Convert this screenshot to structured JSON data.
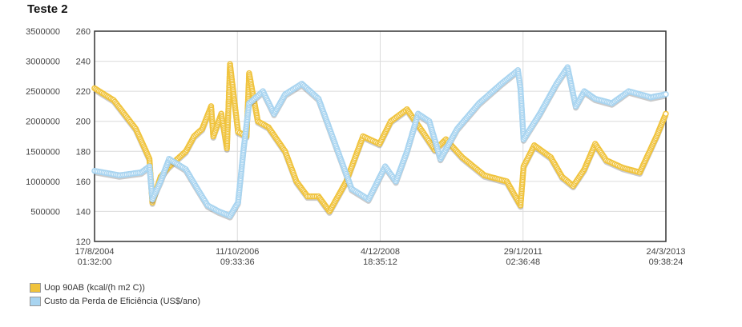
{
  "chart_data": {
    "type": "line",
    "title": "Teste 2",
    "x_axis": {
      "ticks": [
        {
          "date": "17/8/2004",
          "time": "01:32:00"
        },
        {
          "date": "11/10/2006",
          "time": "09:33:36"
        },
        {
          "date": "4/12/2008",
          "time": "18:35:12"
        },
        {
          "date": "29/1/2011",
          "time": "02:36:48"
        },
        {
          "date": "24/3/2013",
          "time": "09:38:24"
        }
      ],
      "range": [
        "17/8/2004 01:32:00",
        "24/3/2013 09:38:24"
      ]
    },
    "y_axis_left": {
      "ticks": [
        "3500000",
        "3000000",
        "2500000",
        "2000000",
        "1500000",
        "1000000",
        "500000"
      ],
      "range": [
        500000,
        3500000
      ]
    },
    "y_axis_right": {
      "ticks": [
        "260",
        "240",
        "220",
        "200",
        "180",
        "160",
        "140",
        "120"
      ],
      "range": [
        120,
        260
      ]
    },
    "grid": true,
    "legend_placement": "bottom-left",
    "series": [
      {
        "name": "Uop 90AB (kcal/(h m2 C))",
        "axis": "right",
        "color": "#f0c33c",
        "points": [
          [
            "17/8/2004",
            222
          ],
          [
            "1/12/2004",
            214
          ],
          [
            "1/4/2005",
            195
          ],
          [
            "15/6/2005",
            175
          ],
          [
            "1/7/2005",
            146
          ],
          [
            "15/8/2005",
            163
          ],
          [
            "1/10/2005",
            170
          ],
          [
            "1/1/2006",
            180
          ],
          [
            "15/2/2006",
            190
          ],
          [
            "1/4/2006",
            195
          ],
          [
            "20/5/2006",
            210
          ],
          [
            "1/6/2006",
            190
          ],
          [
            "15/7/2006",
            205
          ],
          [
            "15/8/2006",
            182
          ],
          [
            "1/9/2006",
            238
          ],
          [
            "15/10/2006",
            193
          ],
          [
            "1/12/2006",
            190
          ],
          [
            "15/12/2006",
            232
          ],
          [
            "1/2/2007",
            200
          ],
          [
            "1/4/2007",
            196
          ],
          [
            "1/7/2007",
            180
          ],
          [
            "1/9/2007",
            160
          ],
          [
            "1/11/2007",
            150
          ],
          [
            "1/1/2008",
            150
          ],
          [
            "1/3/2008",
            140
          ],
          [
            "1/6/2008",
            160
          ],
          [
            "1/9/2008",
            190
          ],
          [
            "1/12/2008",
            185
          ],
          [
            "1/2/2009",
            200
          ],
          [
            "1/5/2009",
            208
          ],
          [
            "1/8/2009",
            192
          ],
          [
            "1/10/2009",
            181
          ],
          [
            "1/12/2009",
            188
          ],
          [
            "1/3/2010",
            176
          ],
          [
            "1/7/2010",
            164
          ],
          [
            "1/11/2010",
            160
          ],
          [
            "15/1/2011",
            144
          ],
          [
            "1/2/2011",
            170
          ],
          [
            "1/4/2011",
            184
          ],
          [
            "1/7/2011",
            176
          ],
          [
            "1/9/2011",
            163
          ],
          [
            "1/11/2011",
            157
          ],
          [
            "1/1/2012",
            168
          ],
          [
            "1/3/2012",
            185
          ],
          [
            "1/5/2012",
            174
          ],
          [
            "1/8/2012",
            169
          ],
          [
            "1/11/2012",
            166
          ],
          [
            "1/2/2013",
            190
          ],
          [
            "24/3/2013",
            205
          ]
        ]
      },
      {
        "name": "Custo da Perda de Eficiência (US$/ano)",
        "axis": "right",
        "color": "#a8d4f0",
        "points": [
          [
            "17/8/2004",
            167
          ],
          [
            "1/1/2005",
            164
          ],
          [
            "1/5/2005",
            166
          ],
          [
            "15/6/2005",
            170
          ],
          [
            "1/7/2005",
            148
          ],
          [
            "15/8/2005",
            160
          ],
          [
            "1/10/2005",
            175
          ],
          [
            "1/1/2006",
            168
          ],
          [
            "1/3/2006",
            156
          ],
          [
            "1/5/2006",
            144
          ],
          [
            "1/7/2006",
            140
          ],
          [
            "1/9/2006",
            137
          ],
          [
            "15/10/2006",
            146
          ],
          [
            "15/11/2006",
            182
          ],
          [
            "15/12/2006",
            212
          ],
          [
            "1/3/2007",
            220
          ],
          [
            "1/5/2007",
            205
          ],
          [
            "1/7/2007",
            218
          ],
          [
            "1/10/2007",
            225
          ],
          [
            "1/1/2008",
            215
          ],
          [
            "1/4/2008",
            185
          ],
          [
            "1/7/2008",
            155
          ],
          [
            "1/10/2008",
            148
          ],
          [
            "1/1/2009",
            170
          ],
          [
            "1/3/2009",
            160
          ],
          [
            "1/5/2009",
            180
          ],
          [
            "1/7/2009",
            205
          ],
          [
            "1/9/2009",
            200
          ],
          [
            "1/11/2009",
            175
          ],
          [
            "1/2/2010",
            195
          ],
          [
            "1/6/2010",
            212
          ],
          [
            "1/10/2010",
            225
          ],
          [
            "1/1/2011",
            234
          ],
          [
            "15/1/2011",
            222
          ],
          [
            "1/2/2011",
            188
          ],
          [
            "1/5/2011",
            205
          ],
          [
            "1/8/2011",
            225
          ],
          [
            "1/10/2011",
            236
          ],
          [
            "15/11/2011",
            210
          ],
          [
            "1/1/2012",
            220
          ],
          [
            "1/3/2012",
            215
          ],
          [
            "1/6/2012",
            212
          ],
          [
            "1/9/2012",
            220
          ],
          [
            "1/1/2013",
            216
          ],
          [
            "24/3/2013",
            218
          ]
        ]
      }
    ]
  }
}
